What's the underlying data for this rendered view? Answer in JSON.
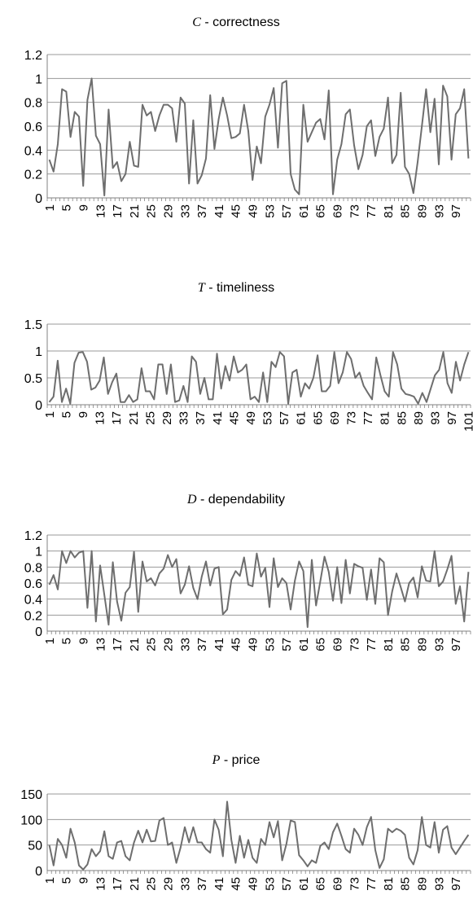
{
  "chart_data": [
    {
      "type": "line",
      "title": "C - correctness",
      "title_var": "C",
      "title_rest": " - correctness",
      "ylim": [
        0,
        1.2
      ],
      "yticks": [
        "0",
        "0.2",
        "0.4",
        "0.6",
        "0.8",
        "1",
        "1.2"
      ],
      "xtick_step": 4,
      "grid": true,
      "color": "#6e6e6e",
      "values": [
        0.32,
        0.22,
        0.45,
        0.91,
        0.89,
        0.51,
        0.72,
        0.68,
        0.1,
        0.82,
        1.0,
        0.52,
        0.45,
        0.02,
        0.74,
        0.25,
        0.3,
        0.14,
        0.2,
        0.47,
        0.27,
        0.26,
        0.78,
        0.69,
        0.72,
        0.56,
        0.69,
        0.78,
        0.78,
        0.75,
        0.47,
        0.84,
        0.79,
        0.12,
        0.65,
        0.12,
        0.19,
        0.33,
        0.86,
        0.41,
        0.66,
        0.84,
        0.69,
        0.5,
        0.51,
        0.54,
        0.78,
        0.56,
        0.15,
        0.43,
        0.29,
        0.68,
        0.78,
        0.92,
        0.42,
        0.96,
        0.98,
        0.2,
        0.07,
        0.03,
        0.78,
        0.47,
        0.55,
        0.63,
        0.66,
        0.49,
        0.9,
        0.03,
        0.32,
        0.45,
        0.7,
        0.74,
        0.44,
        0.24,
        0.36,
        0.6,
        0.65,
        0.35,
        0.51,
        0.58,
        0.84,
        0.29,
        0.36,
        0.88,
        0.26,
        0.2,
        0.04,
        0.3,
        0.6,
        0.91,
        0.55,
        0.83,
        0.28,
        0.94,
        0.85,
        0.32,
        0.7,
        0.75,
        0.91,
        0.33
      ]
    },
    {
      "type": "line",
      "title": "T - timeliness",
      "title_var": "T",
      "title_rest": " - timeliness",
      "ylim": [
        0,
        1.5
      ],
      "yticks": [
        "0",
        "0.5",
        "1",
        "1.5"
      ],
      "xtick_step": 4,
      "grid": true,
      "color": "#6e6e6e",
      "values": [
        0.05,
        0.15,
        0.82,
        0.05,
        0.3,
        0.02,
        0.78,
        0.97,
        0.98,
        0.8,
        0.28,
        0.32,
        0.45,
        0.88,
        0.2,
        0.42,
        0.58,
        0.05,
        0.05,
        0.18,
        0.05,
        0.1,
        0.68,
        0.25,
        0.25,
        0.1,
        0.75,
        0.75,
        0.2,
        0.75,
        0.05,
        0.08,
        0.35,
        0.05,
        0.9,
        0.8,
        0.2,
        0.5,
        0.1,
        0.1,
        0.95,
        0.3,
        0.72,
        0.45,
        0.9,
        0.6,
        0.65,
        0.75,
        0.1,
        0.15,
        0.05,
        0.6,
        0.05,
        0.8,
        0.7,
        0.98,
        0.9,
        0.02,
        0.6,
        0.65,
        0.15,
        0.4,
        0.3,
        0.5,
        0.92,
        0.25,
        0.25,
        0.35,
        0.98,
        0.4,
        0.6,
        0.98,
        0.85,
        0.5,
        0.6,
        0.35,
        0.22,
        0.1,
        0.88,
        0.55,
        0.25,
        0.15,
        0.98,
        0.75,
        0.3,
        0.2,
        0.18,
        0.15,
        0.02,
        0.22,
        0.05,
        0.3,
        0.55,
        0.65,
        0.98,
        0.4,
        0.22,
        0.8,
        0.45,
        0.75,
        0.98
      ]
    },
    {
      "type": "line",
      "title": "D - dependability",
      "title_var": "D",
      "title_rest": " - dependability",
      "ylim": [
        0,
        1.2
      ],
      "yticks": [
        "0",
        "0.2",
        "0.4",
        "0.6",
        "0.8",
        "1",
        "1.2"
      ],
      "xtick_step": 4,
      "grid": true,
      "color": "#6e6e6e",
      "values": [
        0.58,
        0.7,
        0.52,
        1.0,
        0.85,
        1.0,
        0.92,
        0.98,
        1.0,
        0.29,
        1.0,
        0.12,
        0.82,
        0.45,
        0.08,
        0.86,
        0.37,
        0.13,
        0.48,
        0.55,
        0.99,
        0.24,
        0.87,
        0.62,
        0.66,
        0.57,
        0.72,
        0.78,
        0.95,
        0.8,
        0.9,
        0.47,
        0.58,
        0.81,
        0.54,
        0.4,
        0.68,
        0.87,
        0.57,
        0.78,
        0.8,
        0.21,
        0.27,
        0.64,
        0.75,
        0.69,
        0.92,
        0.58,
        0.56,
        0.97,
        0.68,
        0.79,
        0.3,
        0.91,
        0.55,
        0.66,
        0.6,
        0.27,
        0.63,
        0.87,
        0.75,
        0.05,
        0.89,
        0.32,
        0.62,
        0.93,
        0.74,
        0.38,
        0.8,
        0.35,
        0.89,
        0.47,
        0.84,
        0.81,
        0.79,
        0.39,
        0.77,
        0.34,
        0.91,
        0.86,
        0.2,
        0.5,
        0.72,
        0.55,
        0.37,
        0.6,
        0.67,
        0.42,
        0.81,
        0.63,
        0.62,
        1.0,
        0.56,
        0.62,
        0.77,
        0.94,
        0.34,
        0.56,
        0.12,
        0.74
      ]
    },
    {
      "type": "line",
      "title": "P - price",
      "title_var": "P",
      "title_rest": " - price",
      "ylim": [
        0,
        150
      ],
      "yticks": [
        "0",
        "50",
        "100",
        "150"
      ],
      "xtick_step": 4,
      "grid": true,
      "color": "#6e6e6e",
      "values": [
        50,
        10,
        62,
        50,
        25,
        82,
        55,
        10,
        2,
        12,
        42,
        28,
        38,
        77,
        28,
        23,
        55,
        58,
        28,
        20,
        55,
        78,
        55,
        80,
        57,
        58,
        98,
        103,
        50,
        55,
        15,
        45,
        85,
        55,
        85,
        55,
        55,
        42,
        35,
        100,
        80,
        28,
        135,
        60,
        15,
        68,
        25,
        60,
        25,
        15,
        62,
        50,
        95,
        65,
        97,
        20,
        52,
        98,
        95,
        30,
        20,
        8,
        20,
        15,
        48,
        55,
        42,
        75,
        92,
        68,
        42,
        35,
        82,
        70,
        50,
        85,
        105,
        40,
        5,
        22,
        82,
        75,
        82,
        78,
        70,
        25,
        12,
        40,
        105,
        50,
        45,
        95,
        35,
        80,
        87,
        45,
        32,
        45,
        58,
        70
      ]
    }
  ]
}
